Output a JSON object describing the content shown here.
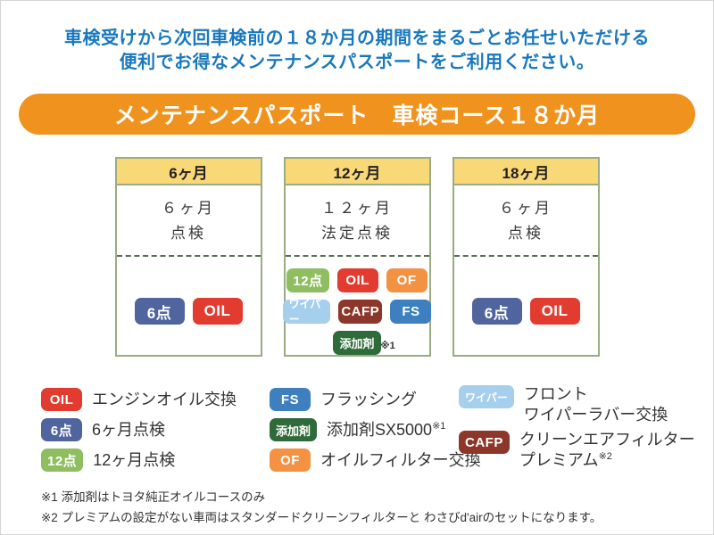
{
  "intro": {
    "line1": "車検受けから次回車検前の１８か月の期間をまるごとお任せいただける",
    "line2": "便利でお得なメンテナンスパスポートをご利用ください。"
  },
  "banner": {
    "title": "メンテナンスパスポート　車検コース１８か月"
  },
  "badges": {
    "oil": {
      "label": "OIL",
      "color": "#e23b30"
    },
    "ten6": {
      "label": "6点",
      "color": "#50659e"
    },
    "ten12": {
      "label": "12点",
      "color": "#8fbe60"
    },
    "of": {
      "label": "OF",
      "color": "#f39243"
    },
    "wiper": {
      "label": "ワイパー",
      "color": "#a5cfec"
    },
    "cafp": {
      "label": "CAFP",
      "color": "#8c372a"
    },
    "fs": {
      "label": "FS",
      "color": "#3d7fbf"
    },
    "tenkazai": {
      "label": "添加剤",
      "color": "#2f6b3a"
    }
  },
  "cards": [
    {
      "header": "6ヶ月",
      "body_line1": "６ヶ月",
      "body_line2": "点検"
    },
    {
      "header": "12ヶ月",
      "body_line1": "１２ヶ月",
      "body_line2": "法定点検",
      "note": "※1"
    },
    {
      "header": "18ヶ月",
      "body_line1": "６ヶ月",
      "body_line2": "点検"
    }
  ],
  "legend": {
    "oil_text": "エンジンオイル交換",
    "ten6_text": "6ヶ月点検",
    "ten12_text": "12ヶ月点検",
    "fs_text": "フラッシング",
    "tenkazai_text": "添加剤SX5000",
    "tenkazai_sup": "※1",
    "of_text": "オイルフィルター交換",
    "wiper_text_line1": "フロント",
    "wiper_text_line2": "ワイパーラバー交換",
    "cafp_text_line1": "クリーンエアフィルター",
    "cafp_text_line2": "プレミアム",
    "cafp_sup": "※2"
  },
  "footnotes": {
    "note1": "※1 添加剤はトヨタ純正オイルコースのみ",
    "note2": "※2 プレミアムの設定がない車両はスタンダードクリーンフィルターと わさびd'airのセットになります。"
  },
  "colors": {
    "heading_blue": "#1878be",
    "banner_orange": "#f0921e",
    "card_header_yellow": "#f9d878",
    "card_border_olive": "#9aac84",
    "divider_green": "#547051",
    "text_dark": "#333333"
  }
}
